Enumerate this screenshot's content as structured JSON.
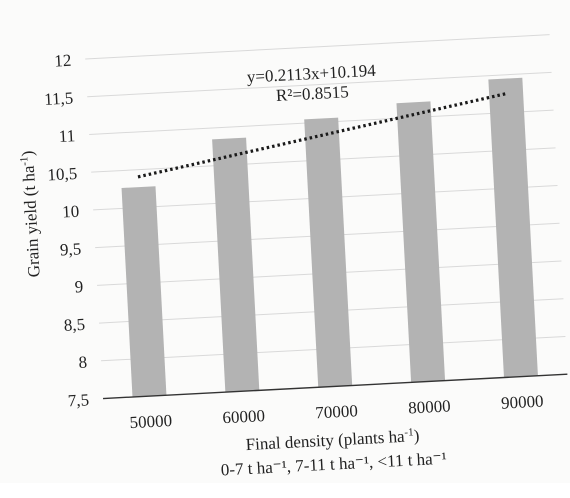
{
  "chart_data": {
    "type": "bar",
    "categories": [
      "50000",
      "60000",
      "70000",
      "80000",
      "90000"
    ],
    "values": [
      10.27,
      10.85,
      11.05,
      11.2,
      11.45
    ],
    "ylim": [
      7.5,
      12
    ],
    "yticks": [
      "7,5",
      "8",
      "8,5",
      "9",
      "9,5",
      "10",
      "10,5",
      "11",
      "11,5",
      "12"
    ],
    "ylabel": {
      "main": "Grain yield (t ha",
      "sup": "-1",
      "tail": ")"
    },
    "xlabel": {
      "line1_main": "Final density (plants ha",
      "line1_sup": "-1",
      "line1_tail": ")",
      "line2": "0-7 t ha⁻¹, 7-11 t ha⁻¹, <11 t ha⁻¹"
    },
    "trendline": {
      "equation": "y=0.2113x+10.194",
      "r2": "R²=0.8515",
      "slope": 0.2113,
      "intercept": 10.194,
      "style": "dotted"
    },
    "grid": true,
    "bar_color": "#b3b3b3",
    "trend_color": "#1a1a1a",
    "grid_color": "#d9d9d9"
  }
}
